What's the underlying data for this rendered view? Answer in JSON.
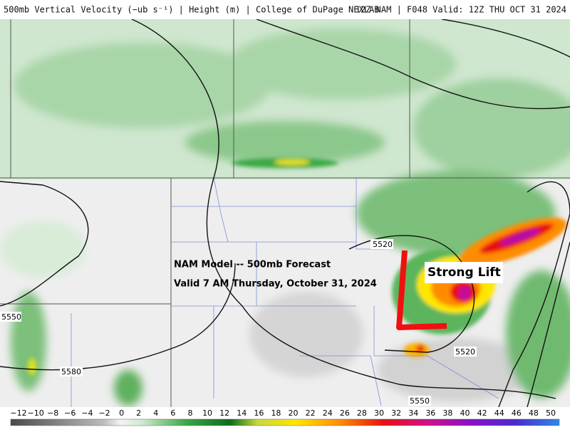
{
  "header": {
    "title": "500mb Vertical Velocity (−ub s⁻¹) | Height (m) | College of DuPage NEXLAB",
    "run": "12Z NAM | F048 Valid: 12Z THU OCT 31 2024"
  },
  "annotations": {
    "forecast_title": "NAM Model -- 500mb Forecast",
    "valid_time": "Valid 7 AM Thursday, October 31, 2024",
    "callout": "Strong Lift"
  },
  "contour_labels": [
    "5520",
    "5550",
    "5580",
    "5520",
    "5550"
  ],
  "colorbar": {
    "labels": [
      "−12",
      "−10",
      "−8",
      "−6",
      "−4",
      "−2",
      "0",
      "2",
      "4",
      "6",
      "8",
      "10",
      "12",
      "14",
      "16",
      "18",
      "20",
      "22",
      "24",
      "26",
      "28",
      "30",
      "32",
      "34",
      "36",
      "38",
      "40",
      "42",
      "44",
      "46",
      "48",
      "50"
    ]
  }
}
